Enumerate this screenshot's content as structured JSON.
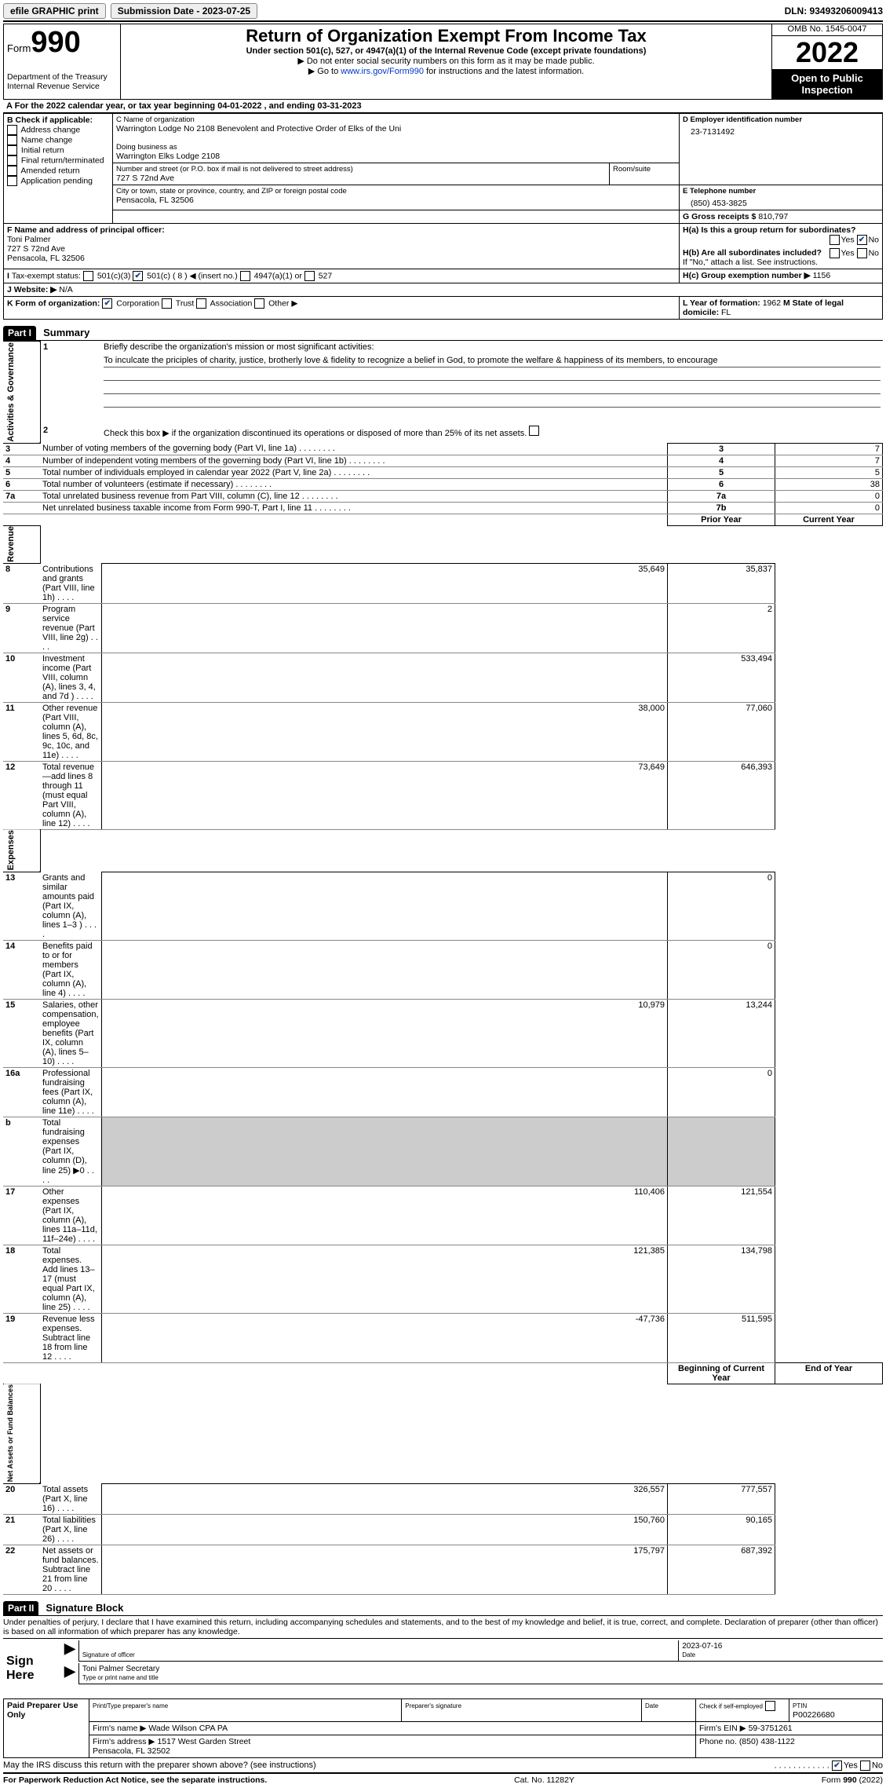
{
  "topbar": {
    "efile": "efile GRAPHIC print",
    "submission_label": "Submission Date - 2023-07-25",
    "dln": "DLN: 93493206009413"
  },
  "header": {
    "form_word": "Form",
    "form_no": "990",
    "dept": "Department of the Treasury\nInternal Revenue Service",
    "title": "Return of Organization Exempt From Income Tax",
    "subtitle": "Under section 501(c), 527, or 4947(a)(1) of the Internal Revenue Code (except private foundations)",
    "note1": "▶ Do not enter social security numbers on this form as it may be made public.",
    "note2_pre": "▶ Go to ",
    "note2_link": "www.irs.gov/Form990",
    "note2_post": " for instructions and the latest information.",
    "omb": "OMB No. 1545-0047",
    "year": "2022",
    "open": "Open to Public Inspection"
  },
  "period": {
    "line": "For the 2022 calendar year, or tax year beginning 04-01-2022    , and ending 03-31-2023"
  },
  "boxB": {
    "title": "B Check if applicable:",
    "opts": [
      "Address change",
      "Name change",
      "Initial return",
      "Final return/terminated",
      "Amended return",
      "Application pending"
    ]
  },
  "boxC": {
    "label_name": "C Name of organization",
    "name": "Warrington Lodge No 2108 Benevolent and Protective Order of Elks of the Uni",
    "dba_label": "Doing business as",
    "dba": "Warrington Elks Lodge 2108",
    "street_label": "Number and street (or P.O. box if mail is not delivered to street address)",
    "room_label": "Room/suite",
    "street": "727 S 72nd Ave",
    "city_label": "City or town, state or province, country, and ZIP or foreign postal code",
    "city": "Pensacola, FL  32506"
  },
  "boxD": {
    "label": "D Employer identification number",
    "value": "23-7131492"
  },
  "boxE": {
    "label": "E Telephone number",
    "value": "(850) 453-3825"
  },
  "boxG": {
    "label": "G Gross receipts $",
    "value": "810,797"
  },
  "boxF": {
    "label": "F  Name and address of principal officer:",
    "name": "Toni Palmer",
    "addr1": "727 S 72nd Ave",
    "addr2": "Pensacola, FL  32506"
  },
  "boxH": {
    "ha": "H(a)  Is this a group return for subordinates?",
    "hb": "H(b)  Are all subordinates included?",
    "hb_note": "If \"No,\" attach a list. See instructions.",
    "hc": "H(c)  Group exemption number ▶",
    "hc_val": "1156",
    "yes": "Yes",
    "no": "No"
  },
  "boxI": {
    "label": "Tax-exempt status:",
    "c3": "501(c)(3)",
    "c": "501(c) (",
    "c_num": "8",
    "c_after": ") ◀ (insert no.)",
    "a1": "4947(a)(1) or",
    "s527": "527"
  },
  "boxJ": {
    "label": "Website: ▶",
    "value": "N/A"
  },
  "boxK": {
    "label": "K Form of organization:",
    "corp": "Corporation",
    "trust": "Trust",
    "assoc": "Association",
    "other": "Other ▶"
  },
  "boxL": {
    "label": "L Year of formation:",
    "value": "1962"
  },
  "boxM": {
    "label": "M State of legal domicile:",
    "value": "FL"
  },
  "part1": {
    "tag": "Part I",
    "title": "Summary",
    "q1": "Briefly describe the organization's mission or most significant activities:",
    "mission": "To inculcate the priciples of charity, justice, brotherly love & fidelity to recognize a belief in God, to promote the welfare & happiness of its members, to encourage",
    "q2": "Check this box ▶        if the organization discontinued its operations or disposed of more than 25% of its net assets.",
    "side_activities": "Activities & Governance",
    "side_revenue": "Revenue",
    "side_expenses": "Expenses",
    "side_net": "Net Assets or Fund Balances",
    "rows_ag": [
      {
        "n": "3",
        "t": "Number of voting members of the governing body (Part VI, line 1a)",
        "lbl": "3",
        "v": "7"
      },
      {
        "n": "4",
        "t": "Number of independent voting members of the governing body (Part VI, line 1b)",
        "lbl": "4",
        "v": "7"
      },
      {
        "n": "5",
        "t": "Total number of individuals employed in calendar year 2022 (Part V, line 2a)",
        "lbl": "5",
        "v": "5"
      },
      {
        "n": "6",
        "t": "Total number of volunteers (estimate if necessary)",
        "lbl": "6",
        "v": "38"
      },
      {
        "n": "7a",
        "t": "Total unrelated business revenue from Part VIII, column (C), line 12",
        "lbl": "7a",
        "v": "0"
      },
      {
        "n": "",
        "t": "Net unrelated business taxable income from Form 990-T, Part I, line 11",
        "lbl": "7b",
        "v": "0"
      }
    ],
    "hdr_prior": "Prior Year",
    "hdr_current": "Current Year",
    "rows_rev": [
      {
        "n": "8",
        "t": "Contributions and grants (Part VIII, line 1h)",
        "p": "35,649",
        "c": "35,837"
      },
      {
        "n": "9",
        "t": "Program service revenue (Part VIII, line 2g)",
        "p": "",
        "c": "2"
      },
      {
        "n": "10",
        "t": "Investment income (Part VIII, column (A), lines 3, 4, and 7d )",
        "p": "",
        "c": "533,494"
      },
      {
        "n": "11",
        "t": "Other revenue (Part VIII, column (A), lines 5, 6d, 8c, 9c, 10c, and 11e)",
        "p": "38,000",
        "c": "77,060"
      },
      {
        "n": "12",
        "t": "Total revenue—add lines 8 through 11 (must equal Part VIII, column (A), line 12)",
        "p": "73,649",
        "c": "646,393"
      }
    ],
    "rows_exp": [
      {
        "n": "13",
        "t": "Grants and similar amounts paid (Part IX, column (A), lines 1–3 )",
        "p": "",
        "c": "0"
      },
      {
        "n": "14",
        "t": "Benefits paid to or for members (Part IX, column (A), line 4)",
        "p": "",
        "c": "0"
      },
      {
        "n": "15",
        "t": "Salaries, other compensation, employee benefits (Part IX, column (A), lines 5–10)",
        "p": "10,979",
        "c": "13,244"
      },
      {
        "n": "16a",
        "t": "Professional fundraising fees (Part IX, column (A), line 11e)",
        "p": "",
        "c": "0"
      },
      {
        "n": "b",
        "t": "Total fundraising expenses (Part IX, column (D), line 25) ▶0",
        "p": "shaded",
        "c": "shaded"
      },
      {
        "n": "17",
        "t": "Other expenses (Part IX, column (A), lines 11a–11d, 11f–24e)",
        "p": "110,406",
        "c": "121,554"
      },
      {
        "n": "18",
        "t": "Total expenses. Add lines 13–17 (must equal Part IX, column (A), line 25)",
        "p": "121,385",
        "c": "134,798"
      },
      {
        "n": "19",
        "t": "Revenue less expenses. Subtract line 18 from line 12",
        "p": "-47,736",
        "c": "511,595"
      }
    ],
    "hdr_begin": "Beginning of Current Year",
    "hdr_end": "End of Year",
    "rows_net": [
      {
        "n": "20",
        "t": "Total assets (Part X, line 16)",
        "p": "326,557",
        "c": "777,557"
      },
      {
        "n": "21",
        "t": "Total liabilities (Part X, line 26)",
        "p": "150,760",
        "c": "90,165"
      },
      {
        "n": "22",
        "t": "Net assets or fund balances. Subtract line 21 from line 20",
        "p": "175,797",
        "c": "687,392"
      }
    ]
  },
  "part2": {
    "tag": "Part II",
    "title": "Signature Block",
    "decl": "Under penalties of perjury, I declare that I have examined this return, including accompanying schedules and statements, and to the best of my knowledge and belief, it is true, correct, and complete. Declaration of preparer (other than officer) is based on all information of which preparer has any knowledge.",
    "sign_here": "Sign Here",
    "sig_officer": "Signature of officer",
    "sig_date": "2023-07-16",
    "date_lbl": "Date",
    "officer_name": "Toni Palmer  Secretary",
    "type_lbl": "Type or print name and title"
  },
  "preparer": {
    "label": "Paid Preparer Use Only",
    "print_name_lbl": "Print/Type preparer's name",
    "sig_lbl": "Preparer's signature",
    "date_lbl": "Date",
    "check_lbl": "Check         if self-employed",
    "ptin_lbl": "PTIN",
    "ptin": "P00226680",
    "firm_name_lbl": "Firm's name      ▶",
    "firm_name": "Wade Wilson CPA PA",
    "firm_ein_lbl": "Firm's EIN ▶",
    "firm_ein": "59-3751261",
    "firm_addr_lbl": "Firm's address ▶",
    "firm_addr1": "1517 West Garden Street",
    "firm_addr2": "Pensacola, FL  32502",
    "phone_lbl": "Phone no.",
    "phone": "(850) 438-1122"
  },
  "discuss": {
    "text": "May the IRS discuss this return with the preparer shown above? (see instructions)",
    "yes": "Yes",
    "no": "No"
  },
  "footer": {
    "left": "For Paperwork Reduction Act Notice, see the separate instructions.",
    "mid": "Cat. No. 11282Y",
    "right": "Form 990 (2022)"
  }
}
